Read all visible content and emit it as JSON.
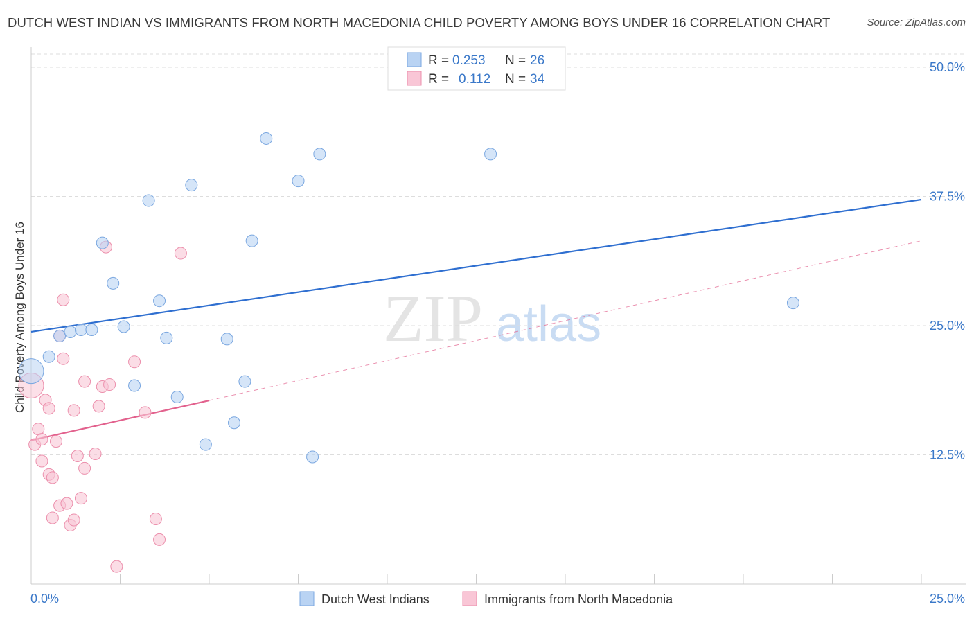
{
  "title": "DUTCH WEST INDIAN VS IMMIGRANTS FROM NORTH MACEDONIA CHILD POVERTY AMONG BOYS UNDER 16 CORRELATION CHART",
  "source": "Source: ZipAtlas.com",
  "watermark": {
    "zip": "ZIP",
    "atlas": "atlas"
  },
  "legend": {
    "series1": {
      "r_label": "R =",
      "r_value": "0.253",
      "n_label": "N =",
      "n_value": "26"
    },
    "series2": {
      "r_label": "R =",
      "r_value": "0.112",
      "n_label": "N =",
      "n_value": "34"
    }
  },
  "colors": {
    "blue_fill": "#b9d3f3",
    "blue_stroke": "#7aa7e0",
    "blue_line": "#2f6fd0",
    "pink_fill": "#f9c6d6",
    "pink_stroke": "#ec8fac",
    "pink_line": "#e2618d",
    "tick_text": "#3a78c9",
    "grid": "#dddddd"
  },
  "chart_data": {
    "type": "scatter",
    "title": "DUTCH WEST INDIAN VS IMMIGRANTS FROM NORTH MACEDONIA CHILD POVERTY AMONG BOYS UNDER 16 CORRELATION CHART",
    "xlabel": "",
    "ylabel": "Child Poverty Among Boys Under 16",
    "xlim": [
      0,
      25
    ],
    "ylim": [
      0,
      52
    ],
    "x_tick_labels": [
      "0.0%",
      "25.0%"
    ],
    "y_ticks": [
      12.5,
      25.0,
      37.5,
      50.0
    ],
    "y_tick_labels": [
      "12.5%",
      "25.0%",
      "37.5%",
      "50.0%"
    ],
    "grid": true,
    "legend_position": "top-center",
    "series": [
      {
        "name": "Dutch West Indians",
        "color": "#7aa7e0",
        "points": [
          [
            0.0,
            20.6
          ],
          [
            0.5,
            22.0
          ],
          [
            0.8,
            24.0
          ],
          [
            1.1,
            24.4
          ],
          [
            1.4,
            24.6
          ],
          [
            1.7,
            24.6
          ],
          [
            2.0,
            33.0
          ],
          [
            2.3,
            29.1
          ],
          [
            2.6,
            24.9
          ],
          [
            2.9,
            19.2
          ],
          [
            3.3,
            37.1
          ],
          [
            3.6,
            27.4
          ],
          [
            3.8,
            23.8
          ],
          [
            4.1,
            18.1
          ],
          [
            4.5,
            38.6
          ],
          [
            4.9,
            13.5
          ],
          [
            5.5,
            23.7
          ],
          [
            5.7,
            15.6
          ],
          [
            6.0,
            19.6
          ],
          [
            6.2,
            33.2
          ],
          [
            6.6,
            43.1
          ],
          [
            7.5,
            39.0
          ],
          [
            7.9,
            12.3
          ],
          [
            8.1,
            41.6
          ],
          [
            12.9,
            41.6
          ],
          [
            21.4,
            27.2
          ]
        ],
        "trend": {
          "x": [
            0,
            25
          ],
          "y": [
            24.4,
            37.2
          ],
          "style": "solid"
        }
      },
      {
        "name": "Immigrants from North Macedonia",
        "color": "#ec8fac",
        "points": [
          [
            0.0,
            19.2
          ],
          [
            0.1,
            13.5
          ],
          [
            0.2,
            15.0
          ],
          [
            0.3,
            11.9
          ],
          [
            0.3,
            14.0
          ],
          [
            0.4,
            17.8
          ],
          [
            0.5,
            17.0
          ],
          [
            0.5,
            10.6
          ],
          [
            0.6,
            6.4
          ],
          [
            0.6,
            10.3
          ],
          [
            0.7,
            13.8
          ],
          [
            0.8,
            24.0
          ],
          [
            0.8,
            7.6
          ],
          [
            0.9,
            21.8
          ],
          [
            0.9,
            27.5
          ],
          [
            1.0,
            7.8
          ],
          [
            1.1,
            5.7
          ],
          [
            1.2,
            6.2
          ],
          [
            1.2,
            16.8
          ],
          [
            1.3,
            12.4
          ],
          [
            1.4,
            8.3
          ],
          [
            1.5,
            19.6
          ],
          [
            1.5,
            11.2
          ],
          [
            1.8,
            12.6
          ],
          [
            1.9,
            17.2
          ],
          [
            2.0,
            19.1
          ],
          [
            2.1,
            32.6
          ],
          [
            2.2,
            19.3
          ],
          [
            2.4,
            1.7
          ],
          [
            2.9,
            21.5
          ],
          [
            3.2,
            16.6
          ],
          [
            3.5,
            6.3
          ],
          [
            3.6,
            4.3
          ],
          [
            4.2,
            32.0
          ]
        ],
        "trend": {
          "x": [
            0,
            25
          ],
          "y": [
            13.9,
            33.2
          ],
          "style": "solid-then-dashed",
          "solid_until_x": 5.0
        }
      }
    ]
  },
  "bottom_legend": [
    "Dutch West Indians",
    "Immigrants from North Macedonia"
  ]
}
